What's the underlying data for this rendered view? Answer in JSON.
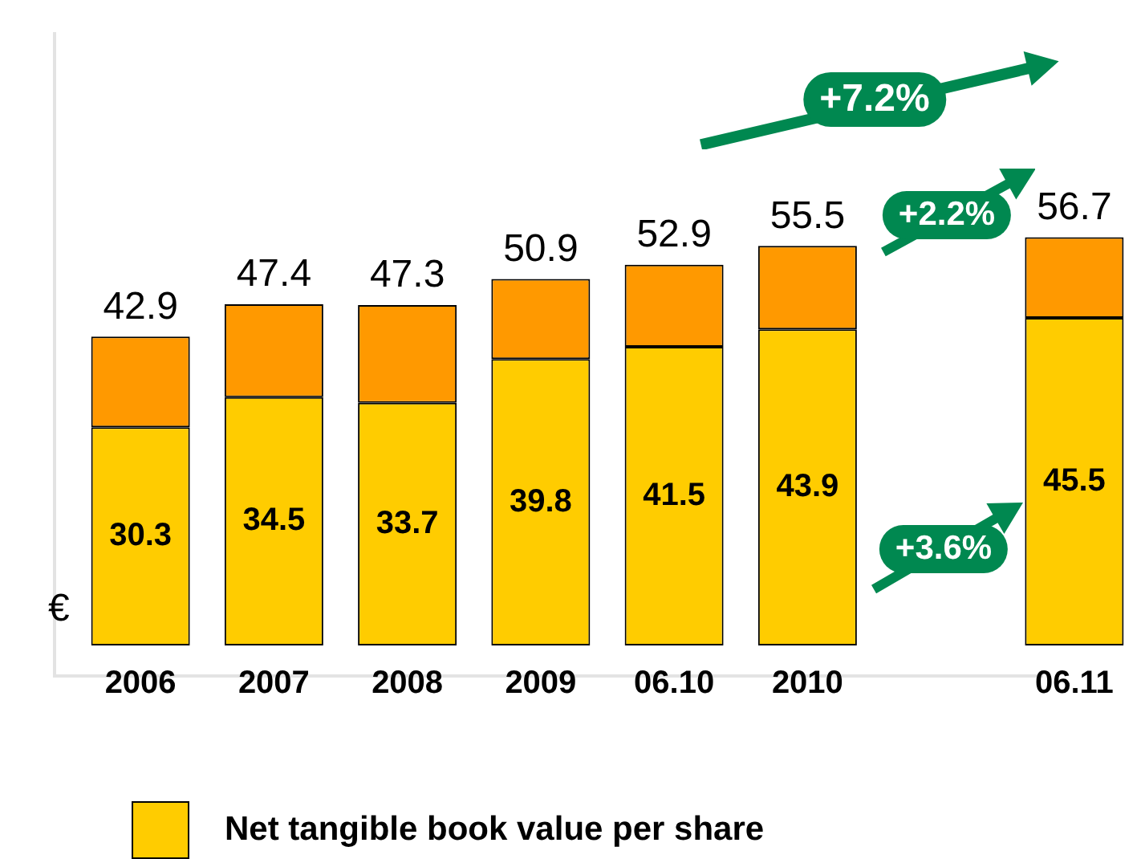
{
  "chart_data": {
    "type": "bar",
    "stacked": true,
    "ylabel": "€",
    "categories": [
      "2006",
      "2007",
      "2008",
      "2009",
      "06.10",
      "2010",
      null,
      "06.11"
    ],
    "series": [
      {
        "name": "Net tangible book value per share",
        "color": "#ffcc00",
        "values": [
          30.3,
          34.5,
          33.7,
          39.8,
          41.5,
          43.9,
          null,
          45.5
        ],
        "value_labels": [
          "30.3",
          "34.5",
          "33.7",
          "39.8",
          "41.5",
          "43.9",
          null,
          "45.5"
        ]
      },
      {
        "color": "#ff9900",
        "values": [
          12.6,
          12.9,
          13.6,
          11.1,
          11.4,
          11.6,
          null,
          11.2
        ]
      }
    ],
    "totals": [
      "42.9",
      "47.4",
      "47.3",
      "50.9",
      "52.9",
      "55.5",
      null,
      "56.7"
    ],
    "tick_labels": "x",
    "grid": false,
    "legend": "bottom",
    "annotations": [
      "+7.2%",
      "+2.2%",
      "+3.6%"
    ]
  }
}
